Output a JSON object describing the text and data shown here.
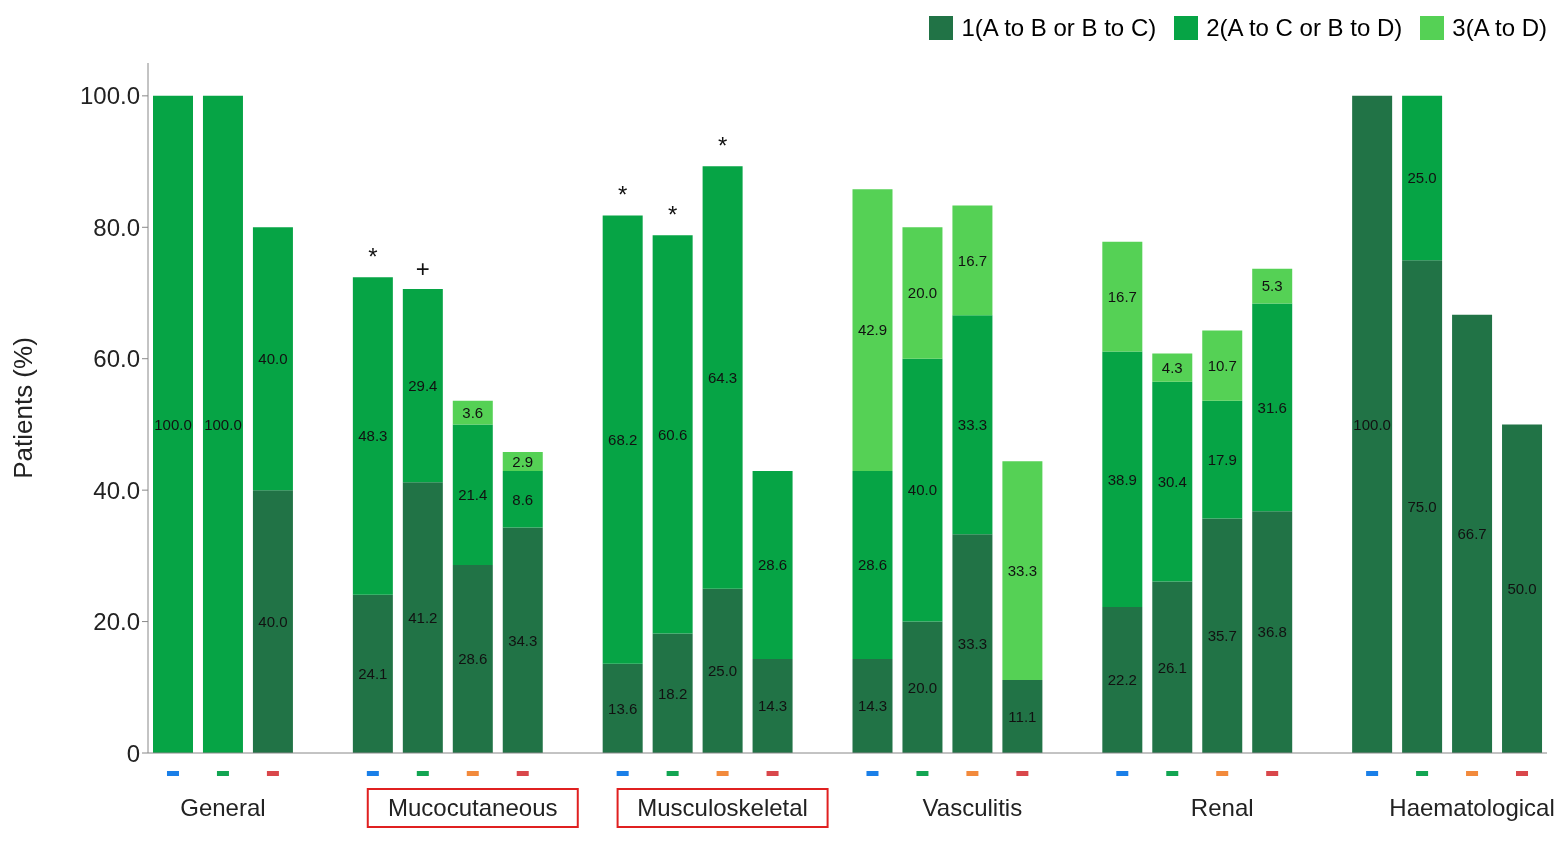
{
  "chart_data": {
    "type": "bar",
    "stacked": true,
    "ylabel": "Patients (%)",
    "categories": [
      null,
      "General",
      null,
      null,
      null,
      null,
      "Mucocutaneous",
      null,
      null,
      null,
      null,
      "Musculoskeletal",
      null,
      null,
      null,
      null,
      "Vasculitis",
      null,
      null,
      null,
      null,
      "Renal",
      null,
      null,
      null,
      null,
      "Haematological",
      null
    ],
    "series": [
      {
        "name": "1(A to B or B to C)",
        "color": "#217346",
        "values": [
          null,
          null,
          40.0,
          null,
          24.1,
          41.2,
          28.6,
          34.3,
          null,
          13.6,
          18.2,
          25.0,
          14.3,
          null,
          14.3,
          20.0,
          33.3,
          11.1,
          null,
          22.2,
          26.1,
          35.7,
          36.8,
          null,
          100.0,
          75.0,
          66.7,
          50.0
        ],
        "value_labels": [
          null,
          null,
          "40.0",
          null,
          "24.1",
          "41.2",
          "28.6",
          "34.3",
          null,
          "13.6",
          "18.2",
          "25.0",
          "14.3",
          null,
          "14.3",
          "20.0",
          "33.3",
          "11.1",
          null,
          "22.2",
          "26.1",
          "35.7",
          "36.8",
          null,
          "100.0",
          "75.0",
          "66.7",
          "50.0"
        ]
      },
      {
        "name": "2(A to C or B to D)",
        "color": "#06a445",
        "values": [
          100.0,
          100.0,
          40.0,
          null,
          48.3,
          29.4,
          21.4,
          8.6,
          null,
          68.2,
          60.6,
          64.3,
          28.6,
          null,
          28.6,
          40.0,
          33.3,
          null,
          null,
          38.9,
          30.4,
          17.9,
          31.6,
          null,
          null,
          25.0,
          null,
          null
        ],
        "value_labels": [
          "100.0",
          "100.0",
          "40.0",
          null,
          "48.3",
          "29.4",
          "21.4",
          "8.6",
          null,
          "68.2",
          "60.6",
          "64.3",
          "28.6",
          null,
          "28.6",
          "40.0",
          "33.3",
          null,
          null,
          "38.9",
          "30.4",
          "17.9",
          "31.6",
          null,
          null,
          "25.0",
          null,
          null
        ]
      },
      {
        "name": "3(A to D)",
        "color": "#55d155",
        "values": [
          null,
          null,
          null,
          null,
          null,
          null,
          3.6,
          2.9,
          null,
          null,
          null,
          null,
          null,
          null,
          42.9,
          20.0,
          16.7,
          33.3,
          null,
          16.7,
          4.3,
          10.7,
          5.3,
          null,
          null,
          null,
          null,
          null
        ],
        "value_labels": [
          null,
          null,
          null,
          null,
          null,
          null,
          "3.6",
          "2.9",
          null,
          null,
          null,
          null,
          null,
          null,
          "42.9",
          "20.0",
          "16.7",
          "33.3",
          null,
          "16.7",
          "4.3",
          "10.7",
          "5.3",
          null,
          null,
          null,
          null,
          null
        ]
      }
    ],
    "ylim": [
      0,
      105
    ],
    "yticks": [
      0,
      {
        "value": 20,
        "label": "20.0"
      },
      {
        "value": 40,
        "label": "40.0"
      },
      {
        "value": 60,
        "label": "60.0"
      },
      {
        "value": 80,
        "label": "80.0"
      },
      {
        "value": 100,
        "label": "100.0"
      }
    ],
    "annotations": [
      "*",
      "+",
      "*",
      "*",
      "*"
    ],
    "grid": false,
    "legend": "top right"
  }
}
